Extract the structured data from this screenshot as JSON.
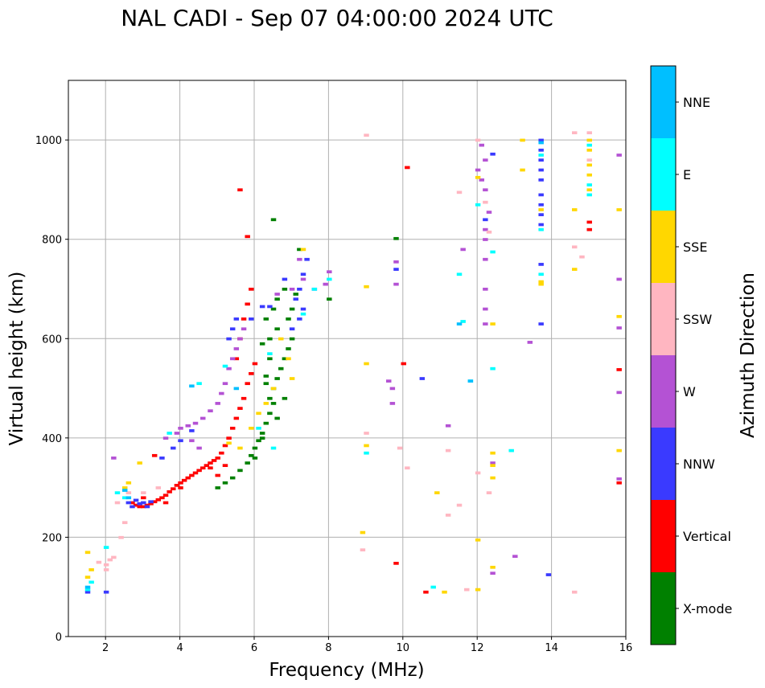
{
  "chart_data": {
    "type": "scatter",
    "title": "NAL CADI - Sep 07 04:00:00 2024 UTC",
    "xlabel": "Frequency (MHz)",
    "ylabel": "Virtual height (km)",
    "xlim": [
      1,
      16
    ],
    "ylim": [
      0,
      1120
    ],
    "xticks": [
      2,
      4,
      6,
      8,
      10,
      12,
      14,
      16
    ],
    "yticks": [
      0,
      200,
      400,
      600,
      800,
      1000
    ],
    "grid": true,
    "colorbar": {
      "label": "Azimuth Direction",
      "categories": [
        {
          "name": "X-mode",
          "color": "#008000"
        },
        {
          "name": "Vertical",
          "color": "#ff0000"
        },
        {
          "name": "NNW",
          "color": "#3a3aff"
        },
        {
          "name": "W",
          "color": "#b452d4"
        },
        {
          "name": "SSW",
          "color": "#ffb6c1"
        },
        {
          "name": "SSE",
          "color": "#ffd700"
        },
        {
          "name": "E",
          "color": "#00ffff"
        },
        {
          "name": "NNE",
          "color": "#00bfff"
        }
      ]
    },
    "series": [
      {
        "name": "X-mode",
        "points": [
          [
            5.0,
            300
          ],
          [
            5.2,
            310
          ],
          [
            5.4,
            320
          ],
          [
            5.6,
            335
          ],
          [
            5.8,
            350
          ],
          [
            5.9,
            365
          ],
          [
            6.0,
            380
          ],
          [
            6.1,
            395
          ],
          [
            6.2,
            410
          ],
          [
            6.3,
            430
          ],
          [
            6.4,
            450
          ],
          [
            6.5,
            470
          ],
          [
            6.5,
            500
          ],
          [
            6.6,
            520
          ],
          [
            6.7,
            540
          ],
          [
            6.8,
            560
          ],
          [
            6.9,
            580
          ],
          [
            7.0,
            600
          ],
          [
            6.3,
            640
          ],
          [
            6.5,
            660
          ],
          [
            6.6,
            680
          ],
          [
            6.8,
            700
          ],
          [
            6.6,
            620
          ],
          [
            6.4,
            600
          ],
          [
            6.2,
            590
          ],
          [
            6.4,
            560
          ],
          [
            6.3,
            525
          ],
          [
            6.6,
            440
          ],
          [
            6.8,
            480
          ],
          [
            6.2,
            400
          ],
          [
            6.0,
            360
          ],
          [
            6.4,
            480
          ],
          [
            6.9,
            640
          ],
          [
            7.0,
            660
          ],
          [
            7.1,
            690
          ],
          [
            6.5,
            840
          ],
          [
            7.2,
            780
          ],
          [
            9.8,
            802
          ],
          [
            8.0,
            680
          ],
          [
            6.3,
            510
          ]
        ]
      },
      {
        "name": "Vertical",
        "points": [
          [
            2.7,
            270
          ],
          [
            2.8,
            265
          ],
          [
            2.9,
            262
          ],
          [
            3.0,
            262
          ],
          [
            3.1,
            265
          ],
          [
            3.2,
            268
          ],
          [
            3.3,
            272
          ],
          [
            3.4,
            276
          ],
          [
            3.5,
            280
          ],
          [
            3.6,
            285
          ],
          [
            3.7,
            292
          ],
          [
            3.8,
            298
          ],
          [
            3.9,
            305
          ],
          [
            4.0,
            310
          ],
          [
            4.1,
            315
          ],
          [
            4.2,
            320
          ],
          [
            4.3,
            325
          ],
          [
            4.4,
            330
          ],
          [
            4.5,
            335
          ],
          [
            4.6,
            340
          ],
          [
            4.7,
            345
          ],
          [
            4.8,
            350
          ],
          [
            4.9,
            355
          ],
          [
            5.0,
            360
          ],
          [
            5.1,
            370
          ],
          [
            5.2,
            385
          ],
          [
            5.3,
            400
          ],
          [
            5.4,
            420
          ],
          [
            5.5,
            440
          ],
          [
            5.6,
            460
          ],
          [
            5.7,
            480
          ],
          [
            5.8,
            510
          ],
          [
            5.9,
            530
          ],
          [
            6.0,
            550
          ],
          [
            5.5,
            560
          ],
          [
            5.6,
            600
          ],
          [
            5.7,
            640
          ],
          [
            5.8,
            670
          ],
          [
            5.9,
            700
          ],
          [
            5.8,
            806
          ],
          [
            5.6,
            900
          ],
          [
            4.8,
            340
          ],
          [
            5.0,
            325
          ],
          [
            5.2,
            345
          ],
          [
            3.3,
            365
          ],
          [
            10.0,
            550
          ],
          [
            9.8,
            148
          ],
          [
            10.1,
            945
          ],
          [
            10.6,
            90
          ],
          [
            15.0,
            820
          ],
          [
            15.0,
            835
          ],
          [
            15.8,
            538
          ],
          [
            15.8,
            310
          ],
          [
            3.0,
            280
          ],
          [
            3.6,
            270
          ],
          [
            4.0,
            300
          ]
        ]
      },
      {
        "name": "NNW",
        "points": [
          [
            2.6,
            270
          ],
          [
            2.8,
            275
          ],
          [
            3.0,
            270
          ],
          [
            3.2,
            272
          ],
          [
            2.9,
            268
          ],
          [
            3.1,
            262
          ],
          [
            2.7,
            262
          ],
          [
            3.5,
            360
          ],
          [
            3.8,
            380
          ],
          [
            4.0,
            395
          ],
          [
            4.3,
            415
          ],
          [
            5.3,
            600
          ],
          [
            5.4,
            620
          ],
          [
            5.5,
            640
          ],
          [
            7.0,
            620
          ],
          [
            7.2,
            640
          ],
          [
            7.3,
            660
          ],
          [
            7.1,
            680
          ],
          [
            7.2,
            700
          ],
          [
            7.3,
            730
          ],
          [
            7.4,
            760
          ],
          [
            6.8,
            720
          ],
          [
            7.6,
            700
          ],
          [
            9.8,
            740
          ],
          [
            10.5,
            520
          ],
          [
            12.4,
            972
          ],
          [
            13.7,
            1000
          ],
          [
            13.7,
            980
          ],
          [
            13.7,
            960
          ],
          [
            13.7,
            940
          ],
          [
            13.7,
            920
          ],
          [
            13.7,
            890
          ],
          [
            13.7,
            870
          ],
          [
            13.7,
            850
          ],
          [
            13.7,
            830
          ],
          [
            13.7,
            750
          ],
          [
            13.7,
            630
          ],
          [
            13.9,
            125
          ],
          [
            12.2,
            840
          ],
          [
            6.4,
            665
          ],
          [
            6.2,
            665
          ],
          [
            5.9,
            640
          ],
          [
            1.5,
            90
          ],
          [
            2.0,
            90
          ]
        ]
      },
      {
        "name": "W",
        "points": [
          [
            4.0,
            420
          ],
          [
            4.2,
            425
          ],
          [
            4.4,
            430
          ],
          [
            4.6,
            440
          ],
          [
            4.8,
            455
          ],
          [
            5.0,
            470
          ],
          [
            5.1,
            490
          ],
          [
            5.2,
            510
          ],
          [
            5.3,
            540
          ],
          [
            5.4,
            560
          ],
          [
            5.5,
            580
          ],
          [
            5.6,
            600
          ],
          [
            5.7,
            620
          ],
          [
            4.5,
            380
          ],
          [
            4.3,
            395
          ],
          [
            3.6,
            400
          ],
          [
            3.9,
            410
          ],
          [
            2.2,
            360
          ],
          [
            7.2,
            760
          ],
          [
            7.3,
            720
          ],
          [
            7.0,
            700
          ],
          [
            6.6,
            690
          ],
          [
            9.6,
            515
          ],
          [
            9.7,
            500
          ],
          [
            9.7,
            470
          ],
          [
            9.8,
            755
          ],
          [
            9.8,
            710
          ],
          [
            11.2,
            425
          ],
          [
            11.6,
            780
          ],
          [
            12.1,
            990
          ],
          [
            12.2,
            960
          ],
          [
            12.0,
            940
          ],
          [
            12.1,
            920
          ],
          [
            12.2,
            900
          ],
          [
            12.3,
            855
          ],
          [
            12.2,
            820
          ],
          [
            12.2,
            800
          ],
          [
            12.2,
            760
          ],
          [
            12.2,
            700
          ],
          [
            12.2,
            660
          ],
          [
            12.2,
            630
          ],
          [
            12.4,
            350
          ],
          [
            12.4,
            128
          ],
          [
            13.0,
            162
          ],
          [
            13.4,
            593
          ],
          [
            15.8,
            970
          ],
          [
            15.8,
            720
          ],
          [
            15.8,
            622
          ],
          [
            15.8,
            492
          ],
          [
            15.8,
            318
          ],
          [
            8.0,
            735
          ],
          [
            7.9,
            710
          ]
        ]
      },
      {
        "name": "SSW",
        "points": [
          [
            1.8,
            150
          ],
          [
            2.0,
            145
          ],
          [
            2.1,
            155
          ],
          [
            2.2,
            160
          ],
          [
            2.0,
            135
          ],
          [
            2.4,
            200
          ],
          [
            2.5,
            230
          ],
          [
            2.3,
            270
          ],
          [
            2.6,
            290
          ],
          [
            3.0,
            290
          ],
          [
            3.4,
            300
          ],
          [
            9.0,
            1010
          ],
          [
            9.0,
            410
          ],
          [
            8.9,
            175
          ],
          [
            9.9,
            380
          ],
          [
            10.1,
            340
          ],
          [
            11.2,
            375
          ],
          [
            11.2,
            245
          ],
          [
            11.5,
            265
          ],
          [
            11.5,
            895
          ],
          [
            12.0,
            330
          ],
          [
            12.3,
            290
          ],
          [
            12.3,
            815
          ],
          [
            12.2,
            875
          ],
          [
            14.6,
            1015
          ],
          [
            14.6,
            785
          ],
          [
            14.8,
            765
          ],
          [
            14.6,
            90
          ],
          [
            11.7,
            95
          ],
          [
            12.0,
            1000
          ],
          [
            15.0,
            1015
          ],
          [
            15.0,
            960
          ]
        ]
      },
      {
        "name": "SSE",
        "points": [
          [
            1.5,
            120
          ],
          [
            1.5,
            170
          ],
          [
            1.6,
            135
          ],
          [
            2.5,
            300
          ],
          [
            2.6,
            310
          ],
          [
            2.9,
            350
          ],
          [
            5.6,
            380
          ],
          [
            5.9,
            420
          ],
          [
            6.1,
            450
          ],
          [
            6.3,
            470
          ],
          [
            6.5,
            500
          ],
          [
            6.7,
            600
          ],
          [
            6.9,
            560
          ],
          [
            7.0,
            520
          ],
          [
            5.3,
            390
          ],
          [
            7.3,
            780
          ],
          [
            9.0,
            550
          ],
          [
            9.0,
            705
          ],
          [
            9.0,
            385
          ],
          [
            8.9,
            210
          ],
          [
            10.9,
            290
          ],
          [
            11.1,
            90
          ],
          [
            12.0,
            925
          ],
          [
            12.0,
            195
          ],
          [
            12.0,
            95
          ],
          [
            12.4,
            630
          ],
          [
            12.4,
            370
          ],
          [
            12.4,
            345
          ],
          [
            12.4,
            320
          ],
          [
            12.4,
            140
          ],
          [
            13.2,
            1000
          ],
          [
            13.2,
            940
          ],
          [
            13.7,
            715
          ],
          [
            13.7,
            710
          ],
          [
            14.6,
            860
          ],
          [
            14.6,
            740
          ],
          [
            15.0,
            1000
          ],
          [
            15.0,
            980
          ],
          [
            15.0,
            950
          ],
          [
            15.0,
            930
          ],
          [
            15.0,
            900
          ],
          [
            15.8,
            860
          ],
          [
            15.8,
            645
          ],
          [
            15.8,
            375
          ],
          [
            13.7,
            860
          ]
        ]
      },
      {
        "name": "E",
        "points": [
          [
            1.5,
            95
          ],
          [
            1.6,
            110
          ],
          [
            2.0,
            180
          ],
          [
            2.3,
            290
          ],
          [
            2.5,
            280
          ],
          [
            3.7,
            410
          ],
          [
            4.5,
            510
          ],
          [
            5.2,
            545
          ],
          [
            6.1,
            420
          ],
          [
            6.4,
            570
          ],
          [
            6.5,
            380
          ],
          [
            7.6,
            700
          ],
          [
            7.3,
            650
          ],
          [
            8.0,
            720
          ],
          [
            9.0,
            370
          ],
          [
            11.5,
            730
          ],
          [
            11.6,
            635
          ],
          [
            11.8,
            515
          ],
          [
            12.0,
            870
          ],
          [
            12.4,
            540
          ],
          [
            12.4,
            775
          ],
          [
            12.9,
            375
          ],
          [
            10.8,
            100
          ],
          [
            13.7,
            730
          ],
          [
            13.7,
            820
          ],
          [
            13.7,
            970
          ],
          [
            15.0,
            990
          ],
          [
            15.0,
            910
          ],
          [
            15.0,
            890
          ]
        ]
      },
      {
        "name": "NNE",
        "points": [
          [
            2.5,
            295
          ],
          [
            2.6,
            280
          ],
          [
            1.5,
            100
          ],
          [
            4.3,
            505
          ],
          [
            5.5,
            500
          ],
          [
            11.5,
            630
          ],
          [
            11.8,
            515
          ],
          [
            13.7,
            995
          ]
        ]
      }
    ]
  }
}
